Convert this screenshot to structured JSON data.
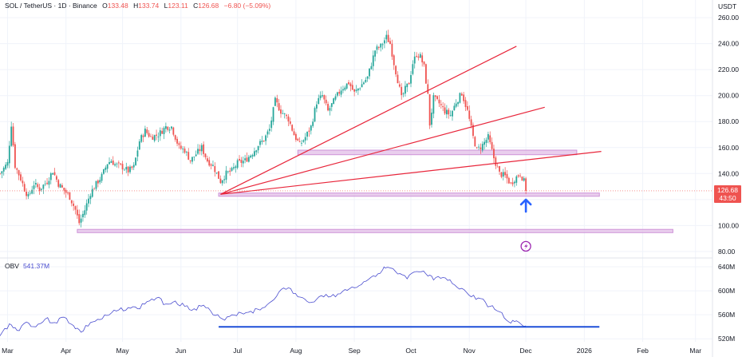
{
  "header": {
    "symbol": "SOL / TetherUS · 1D · Binance",
    "open_label": "O",
    "open": "133.48",
    "high_label": "H",
    "high": "133.74",
    "low_label": "L",
    "low": "123.11",
    "close_label": "C",
    "close": "126.68",
    "change": "−6.80 (−5.09%)"
  },
  "currency": "USDT",
  "price_tag": {
    "price": "126.68",
    "countdown": "43:50"
  },
  "obv": {
    "label": "OBV",
    "value": "541.37M"
  },
  "colors": {
    "up": "#26a69a",
    "down": "#ef5350",
    "trend": "#e8263b",
    "zone": "#ce93d8",
    "zone_fill": "#e1bee7",
    "obv_line": "#4a4dcf",
    "support": "#1e4fd8",
    "arrow": "#2962ff",
    "grid": "#f0f3fa",
    "text": "#131722"
  },
  "icons": {
    "arrow": "up-arrow-icon",
    "lightning": "lightning-icon"
  },
  "chart_data": [
    {
      "type": "candlestick",
      "title": "",
      "ylim": [
        75,
        265
      ],
      "y_ticks": [
        "80.00",
        "100.00",
        "120.00",
        "140.00",
        "160.00",
        "180.00",
        "200.00",
        "220.00",
        "240.00",
        "260.00"
      ],
      "y_tick_values": [
        80,
        100,
        120,
        140,
        160,
        180,
        200,
        220,
        240,
        260
      ],
      "x_ticks": [
        "Mar",
        "Apr",
        "May",
        "Jun",
        "Jul",
        "Aug",
        "Sep",
        "Oct",
        "Nov",
        "Dec",
        "2026",
        "Feb",
        "Mar"
      ],
      "x_tick_dates": [
        "2025-03-01",
        "2025-04-01",
        "2025-05-01",
        "2025-06-01",
        "2025-07-01",
        "2025-08-01",
        "2025-09-01",
        "2025-10-01",
        "2025-11-01",
        "2025-12-01",
        "2026-01-01",
        "2026-02-01",
        "2026-03-01"
      ],
      "x_range": [
        "2025-02-25",
        "2026-03-10"
      ],
      "close_path": [
        [
          "2025-02-25",
          140
        ],
        [
          "2025-03-01",
          148
        ],
        [
          "2025-03-03",
          178
        ],
        [
          "2025-03-05",
          146
        ],
        [
          "2025-03-08",
          136
        ],
        [
          "2025-03-10",
          128
        ],
        [
          "2025-03-12",
          122
        ],
        [
          "2025-03-15",
          132
        ],
        [
          "2025-03-18",
          128
        ],
        [
          "2025-03-22",
          134
        ],
        [
          "2025-03-25",
          142
        ],
        [
          "2025-03-28",
          132
        ],
        [
          "2025-03-31",
          127
        ],
        [
          "2025-04-03",
          122
        ],
        [
          "2025-04-06",
          112
        ],
        [
          "2025-04-08",
          102
        ],
        [
          "2025-04-11",
          112
        ],
        [
          "2025-04-14",
          125
        ],
        [
          "2025-04-17",
          132
        ],
        [
          "2025-04-20",
          138
        ],
        [
          "2025-04-23",
          148
        ],
        [
          "2025-04-25",
          150
        ],
        [
          "2025-04-27",
          147
        ],
        [
          "2025-05-01",
          145
        ],
        [
          "2025-05-04",
          142
        ],
        [
          "2025-05-07",
          145
        ],
        [
          "2025-05-10",
          165
        ],
        [
          "2025-05-13",
          173
        ],
        [
          "2025-05-16",
          168
        ],
        [
          "2025-05-20",
          170
        ],
        [
          "2025-05-24",
          176
        ],
        [
          "2025-05-27",
          176
        ],
        [
          "2025-05-31",
          160
        ],
        [
          "2025-06-03",
          158
        ],
        [
          "2025-06-06",
          150
        ],
        [
          "2025-06-09",
          155
        ],
        [
          "2025-06-12",
          160
        ],
        [
          "2025-06-15",
          150
        ],
        [
          "2025-06-18",
          146
        ],
        [
          "2025-06-22",
          134
        ],
        [
          "2025-06-25",
          140
        ],
        [
          "2025-06-28",
          142
        ],
        [
          "2025-07-01",
          148
        ],
        [
          "2025-07-05",
          150
        ],
        [
          "2025-07-09",
          156
        ],
        [
          "2025-07-12",
          162
        ],
        [
          "2025-07-15",
          166
        ],
        [
          "2025-07-18",
          174
        ],
        [
          "2025-07-21",
          196
        ],
        [
          "2025-07-24",
          188
        ],
        [
          "2025-07-28",
          182
        ],
        [
          "2025-07-31",
          170
        ],
        [
          "2025-08-03",
          162
        ],
        [
          "2025-08-06",
          168
        ],
        [
          "2025-08-09",
          176
        ],
        [
          "2025-08-12",
          195
        ],
        [
          "2025-08-15",
          200
        ],
        [
          "2025-08-18",
          188
        ],
        [
          "2025-08-22",
          198
        ],
        [
          "2025-08-25",
          205
        ],
        [
          "2025-08-29",
          210
        ],
        [
          "2025-09-01",
          202
        ],
        [
          "2025-09-04",
          207
        ],
        [
          "2025-09-08",
          214
        ],
        [
          "2025-09-12",
          235
        ],
        [
          "2025-09-15",
          238
        ],
        [
          "2025-09-18",
          245
        ],
        [
          "2025-09-20",
          240
        ],
        [
          "2025-09-22",
          225
        ],
        [
          "2025-09-24",
          212
        ],
        [
          "2025-09-26",
          198
        ],
        [
          "2025-09-28",
          205
        ],
        [
          "2025-09-30",
          210
        ],
        [
          "2025-10-02",
          225
        ],
        [
          "2025-10-04",
          232
        ],
        [
          "2025-10-06",
          230
        ],
        [
          "2025-10-08",
          222
        ],
        [
          "2025-10-10",
          200
        ],
        [
          "2025-10-11",
          178
        ],
        [
          "2025-10-13",
          198
        ],
        [
          "2025-10-16",
          194
        ],
        [
          "2025-10-19",
          188
        ],
        [
          "2025-10-22",
          185
        ],
        [
          "2025-10-25",
          195
        ],
        [
          "2025-10-28",
          202
        ],
        [
          "2025-10-31",
          188
        ],
        [
          "2025-11-03",
          168
        ],
        [
          "2025-11-05",
          158
        ],
        [
          "2025-11-08",
          162
        ],
        [
          "2025-11-11",
          168
        ],
        [
          "2025-11-14",
          152
        ],
        [
          "2025-11-17",
          140
        ],
        [
          "2025-11-20",
          138
        ],
        [
          "2025-11-23",
          132
        ],
        [
          "2025-11-25",
          136
        ],
        [
          "2025-11-28",
          140
        ],
        [
          "2025-11-30",
          134
        ],
        [
          "2025-12-01",
          127
        ]
      ],
      "last_price": 126.68,
      "trendlines": [
        {
          "from": [
            "2025-06-22",
            124
          ],
          "to": [
            "2025-11-26",
            238
          ]
        },
        {
          "from": [
            "2025-06-22",
            124
          ],
          "to": [
            "2025-12-11",
            191
          ]
        },
        {
          "from": [
            "2025-06-22",
            124
          ],
          "to": [
            "2026-01-10",
            157
          ]
        }
      ],
      "zones": [
        {
          "from": "2025-08-02",
          "to": "2025-12-28",
          "y": [
            154.5,
            158
          ]
        },
        {
          "from": "2025-06-21",
          "to": "2026-01-09",
          "y": [
            122.5,
            125
          ]
        },
        {
          "from": "2025-04-07",
          "to": "2026-02-17",
          "y": [
            94.5,
            97
          ]
        }
      ],
      "annotations": [
        {
          "type": "arrow-up",
          "x": "2025-12-01",
          "y": 115
        },
        {
          "type": "lightning",
          "x": "2025-12-01",
          "y": 84
        }
      ]
    },
    {
      "type": "line",
      "title": "",
      "series": [
        {
          "points": [
            [
              "2025-02-25",
              525
            ],
            [
              "2025-03-02",
              545
            ],
            [
              "2025-03-06",
              534
            ],
            [
              "2025-03-11",
              548
            ],
            [
              "2025-03-16",
              540
            ],
            [
              "2025-03-21",
              553
            ],
            [
              "2025-03-26",
              547
            ],
            [
              "2025-03-31",
              556
            ],
            [
              "2025-04-05",
              542
            ],
            [
              "2025-04-09",
              531
            ],
            [
              "2025-04-14",
              547
            ],
            [
              "2025-04-19",
              552
            ],
            [
              "2025-04-24",
              560
            ],
            [
              "2025-04-29",
              568
            ],
            [
              "2025-05-04",
              572
            ],
            [
              "2025-05-09",
              570
            ],
            [
              "2025-05-14",
              582
            ],
            [
              "2025-05-19",
              588
            ],
            [
              "2025-05-24",
              578
            ],
            [
              "2025-05-29",
              583
            ],
            [
              "2025-06-03",
              574
            ],
            [
              "2025-06-08",
              570
            ],
            [
              "2025-06-13",
              576
            ],
            [
              "2025-06-18",
              560
            ],
            [
              "2025-06-23",
              553
            ],
            [
              "2025-06-28",
              560
            ],
            [
              "2025-07-03",
              563
            ],
            [
              "2025-07-08",
              566
            ],
            [
              "2025-07-13",
              568
            ],
            [
              "2025-07-18",
              580
            ],
            [
              "2025-07-23",
              598
            ],
            [
              "2025-07-28",
              605
            ],
            [
              "2025-08-02",
              590
            ],
            [
              "2025-08-07",
              582
            ],
            [
              "2025-08-12",
              586
            ],
            [
              "2025-08-17",
              594
            ],
            [
              "2025-08-22",
              590
            ],
            [
              "2025-08-27",
              602
            ],
            [
              "2025-09-01",
              605
            ],
            [
              "2025-09-06",
              615
            ],
            [
              "2025-09-11",
              625
            ],
            [
              "2025-09-16",
              635
            ],
            [
              "2025-09-19",
              639
            ],
            [
              "2025-09-24",
              628
            ],
            [
              "2025-09-29",
              620
            ],
            [
              "2025-10-04",
              632
            ],
            [
              "2025-10-09",
              628
            ],
            [
              "2025-10-13",
              618
            ],
            [
              "2025-10-18",
              622
            ],
            [
              "2025-10-23",
              612
            ],
            [
              "2025-10-28",
              604
            ],
            [
              "2025-11-02",
              590
            ],
            [
              "2025-11-07",
              587
            ],
            [
              "2025-11-12",
              574
            ],
            [
              "2025-11-17",
              565
            ],
            [
              "2025-11-22",
              548
            ],
            [
              "2025-11-26",
              550
            ],
            [
              "2025-12-01",
              541.37
            ]
          ]
        }
      ],
      "y_ticks": [
        "520M",
        "560M",
        "600M",
        "640M"
      ],
      "y_tick_values": [
        520,
        560,
        600,
        640
      ],
      "ylim": [
        515,
        648
      ],
      "support_line": {
        "from": "2025-06-21",
        "to": "2026-01-09",
        "y": 540
      }
    }
  ]
}
